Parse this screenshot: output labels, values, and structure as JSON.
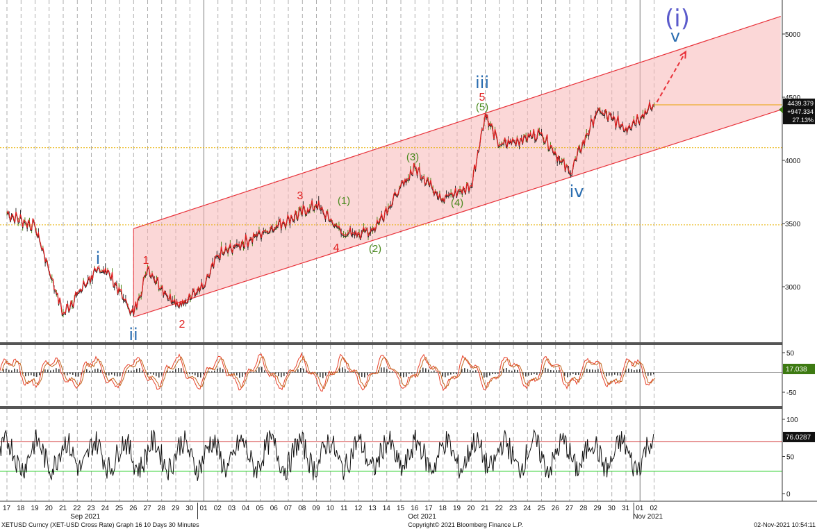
{
  "colors": {
    "channel_fill": "#f7b6b6",
    "channel_line": "#e8323a",
    "price_red": "#e02020",
    "price_green": "#3a7a00",
    "price_black": "#202020",
    "sto_red": "#e8402a",
    "sto_orange": "#c2641d",
    "rsi_line": "#111111",
    "ob_line": "#d03030",
    "os_line": "#22cc22",
    "ref_dotted": "#e8b000",
    "last_price_line": "#e8a000",
    "panel_sep": "#555555",
    "elliott_blue": "#2a6db0",
    "elliott_red": "#e02020",
    "elliott_green": "#4a8a1e",
    "elliott_purple": "#5a5acb",
    "label_black_bg": "#111111",
    "label_green_bg": "#3d7a12"
  },
  "footer": {
    "left": "XETUSD Curncy (XET-USD Cross Rate) Graph 16 10 Days 30 Minutes",
    "center": "Copyright© 2021 Bloomberg Finance L.P.",
    "right": "02-Nov-2021 10:54:11"
  },
  "x_axis": {
    "days": [
      "17",
      "18",
      "19",
      "20",
      "21",
      "22",
      "23",
      "24",
      "25",
      "26",
      "27",
      "28",
      "29",
      "30",
      "01",
      "02",
      "03",
      "04",
      "05",
      "06",
      "07",
      "08",
      "09",
      "10",
      "11",
      "12",
      "13",
      "14",
      "15",
      "16",
      "17",
      "18",
      "19",
      "20",
      "21",
      "22",
      "23",
      "24",
      "25",
      "26",
      "27",
      "28",
      "29",
      "30",
      "31",
      "01",
      "02"
    ],
    "months": [
      {
        "label": "Sep 2021",
        "day_index": 5
      },
      {
        "label": "Oct 2021",
        "day_index": 29
      },
      {
        "label": "Nov 2021",
        "day_index": 45
      }
    ]
  },
  "price_panel": {
    "y_ticks": [
      "5000",
      "4500",
      "4000",
      "3500",
      "3000"
    ],
    "last_price_label": "4439.379",
    "change_label": "+947.334",
    "pct_label": "27.13%"
  },
  "stoch_panel": {
    "y_ticks": [
      "50",
      "-50"
    ],
    "value_label": "17.038"
  },
  "rsi_panel": {
    "y_ticks": [
      "100",
      "50",
      "0"
    ],
    "value_label": "76.0287",
    "overbought": 70,
    "oversold": 30
  },
  "annotations": {
    "big_i": "(i)",
    "v_top": "v",
    "iii": "iii",
    "iv": "iv",
    "i": "i",
    "ii": "ii",
    "r1": "1",
    "r2": "2",
    "r3": "3",
    "r4": "4",
    "r5": "5",
    "g1": "(1)",
    "g2": "(2)",
    "g3": "(3)",
    "g4": "(4)",
    "g5": "(5)"
  },
  "chart_data": {
    "type": "line",
    "title": "",
    "xlabel": "",
    "ylabel": "",
    "ylim": [
      2650,
      5200
    ],
    "x": [
      "2021-09-17",
      "2021-09-19",
      "2021-09-21",
      "2021-09-23",
      "2021-09-24",
      "2021-09-26",
      "2021-09-27",
      "2021-09-29",
      "2021-10-01",
      "2021-10-02",
      "2021-10-05",
      "2021-10-09",
      "2021-10-11",
      "2021-10-13",
      "2021-10-16",
      "2021-10-18",
      "2021-10-20",
      "2021-10-21",
      "2021-10-22",
      "2021-10-25",
      "2021-10-27",
      "2021-10-29",
      "2021-10-31",
      "2021-11-02"
    ],
    "series": [
      {
        "values": [
          3580,
          3480,
          2790,
          3090,
          3150,
          2780,
          3150,
          2850,
          3000,
          3250,
          3420,
          3650,
          3410,
          3450,
          3950,
          3700,
          3800,
          4370,
          4120,
          4220,
          3900,
          4400,
          4260,
          4439.379
        ]
      }
    ],
    "channel": {
      "upper": [
        {
          "x": "2021-09-26",
          "y": 3460
        },
        {
          "x": "2021-11-11",
          "y": 5140
        }
      ],
      "lower": [
        {
          "x": "2021-09-26",
          "y": 2760
        },
        {
          "x": "2021-11-11",
          "y": 4400
        }
      ]
    },
    "reference_lines": [
      4100,
      3490
    ],
    "projection": [
      {
        "x": "2021-11-02",
        "y": 4439
      },
      {
        "x": "2021-11-04",
        "y": 4860
      }
    ],
    "stoch": {
      "ylim": [
        -75,
        75
      ],
      "last": 17.038
    },
    "rsi": {
      "ylim": [
        -5,
        110
      ],
      "last": 76.0287,
      "overbought": 70,
      "oversold": 30
    }
  }
}
